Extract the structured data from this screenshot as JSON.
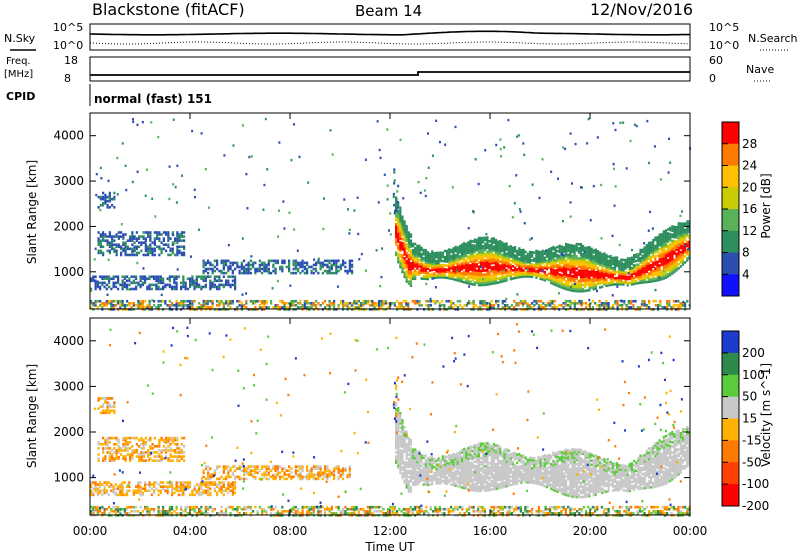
{
  "header": {
    "radar": "Blackstone (fitACF)",
    "beam": "Beam 14",
    "date": "12/Nov/2016"
  },
  "noise_panel": {
    "left_label": "N.Sky",
    "right_label": "N.Search",
    "left_ticks": [
      "10^5",
      "10^0"
    ],
    "right_ticks": [
      "10^5",
      "10^0"
    ]
  },
  "freq_panel": {
    "left_label_line1": "Freq.",
    "left_label_line2": "[MHz]",
    "left_ticks": [
      "18",
      "8"
    ],
    "right_label": "Nave",
    "right_ticks": [
      "60",
      "0"
    ]
  },
  "cpid_panel": {
    "label": "CPID",
    "text": "normal (fast) 151"
  },
  "xaxis": {
    "label": "Time UT",
    "ticks": [
      "00:00",
      "04:00",
      "08:00",
      "12:00",
      "16:00",
      "20:00",
      "00:00"
    ]
  },
  "chart_data": [
    {
      "type": "heatmap",
      "name": "power",
      "ylabel": "Slant Range [km]",
      "yticks": [
        "4000",
        "3000",
        "2000",
        "1000"
      ],
      "ylim": [
        180,
        4500
      ],
      "xlim_hours": [
        0,
        24
      ],
      "colorbar_label": "Power [dB]",
      "colorbar_ticks": [
        "28",
        "24",
        "20",
        "16",
        "12",
        "8",
        "4"
      ],
      "colorbar_colors": [
        "#ff0000",
        "#ff7a00",
        "#ffc000",
        "#c8cc00",
        "#59b259",
        "#2e8f5e",
        "#2a4fb0",
        "#1010ff"
      ],
      "scatter_bands": [
        {
          "t0": 0.0,
          "t1": 24.0,
          "r0": 200,
          "r1": 400,
          "level": "mixed"
        },
        {
          "t0": 0.0,
          "t1": 5.8,
          "r0": 650,
          "r1": 950,
          "level": "low"
        },
        {
          "t0": 0.3,
          "t1": 1.0,
          "r0": 2450,
          "r1": 2800,
          "level": "low"
        },
        {
          "t0": 0.3,
          "t1": 3.8,
          "r0": 1400,
          "r1": 1900,
          "level": "low"
        },
        {
          "t0": 4.5,
          "t1": 10.5,
          "r0": 1000,
          "r1": 1300,
          "level": "low"
        }
      ],
      "main_echo": [
        [
          12.2,
          1900
        ],
        [
          12.7,
          1200
        ],
        [
          13.5,
          1050
        ],
        [
          16,
          1150
        ],
        [
          19.5,
          1000
        ],
        [
          21.5,
          900
        ],
        [
          23,
          1300
        ],
        [
          24,
          1650
        ]
      ]
    },
    {
      "type": "heatmap",
      "name": "velocity",
      "ylabel": "Slant Range [km]",
      "yticks": [
        "4000",
        "3000",
        "2000",
        "1000"
      ],
      "ylim": [
        180,
        4500
      ],
      "xlim_hours": [
        0,
        24
      ],
      "colorbar_label": "Velocity [m s^-1]",
      "colorbar_ticks": [
        "200",
        "100",
        "50",
        "15",
        "-15",
        "-50",
        "-100",
        "-200"
      ],
      "colorbar_colors": [
        "#1e3ccc",
        "#2e8a4a",
        "#5acc3a",
        "#c8c8c8",
        "#ffb000",
        "#ff7a00",
        "#ff4000",
        "#ff0000"
      ],
      "main_echo_velocity": "-15 to 15"
    }
  ]
}
